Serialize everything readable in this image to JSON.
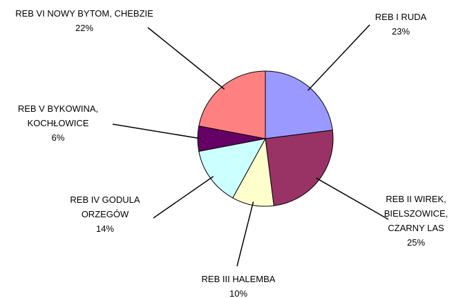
{
  "chart_data": {
    "type": "pie",
    "categories": [
      "REB I RUDA",
      "REB II WIREK, BIELSZOWICE, CZARNY LAS",
      "REB III HALEMBA",
      "REB IV GODULA ORZEGÓW",
      "REB V BYKOWINA, KOCHŁOWICE",
      "REB VI NOWY BYTOM, CHEBZIE"
    ],
    "values": [
      23,
      25,
      10,
      14,
      6,
      22
    ],
    "value_labels": [
      "23%",
      "25%",
      "10%",
      "14%",
      "6%",
      "22%"
    ],
    "colors": [
      "#9999ff",
      "#993366",
      "#ffffcc",
      "#ccffff",
      "#660066",
      "#ff8080"
    ]
  }
}
